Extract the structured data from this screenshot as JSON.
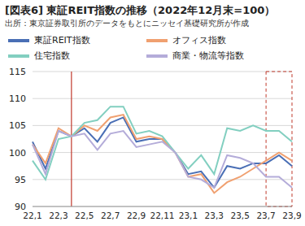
{
  "chart_data": {
    "type": "line",
    "title": "[図表6] 東証REIT指数の推移（2022年12月末=100）",
    "subtitle": "出所：東京証券取引所のデータをもとにニッセイ基礎研究所が作成",
    "categories": [
      "22,1",
      null,
      "22,3",
      null,
      "22,5",
      null,
      "22,7",
      null,
      "22,9",
      null,
      "22,11",
      null,
      "23,1",
      null,
      "23,3",
      null,
      "23,5",
      null,
      "23,7",
      null,
      "23,9"
    ],
    "series": [
      {
        "name": "東証REIT指数",
        "color": "#4a6fb5",
        "values": [
          102,
          97,
          104,
          103,
          104.5,
          102,
          105.5,
          106.5,
          102,
          102.5,
          102.5,
          100,
          96,
          96.5,
          93.5,
          97.5,
          97,
          98,
          98,
          99.5,
          97.5
        ]
      },
      {
        "name": "オフィス指数",
        "color": "#f0a070",
        "values": [
          101.5,
          98,
          104.5,
          103,
          105,
          104,
          106.5,
          107,
          102.5,
          103,
          102.5,
          100,
          95.5,
          96,
          92.5,
          94.5,
          95.5,
          97,
          98.5,
          100,
          98.5
        ]
      },
      {
        "name": "住宅指数",
        "color": "#82cfc0",
        "values": [
          98.5,
          95,
          102.5,
          103,
          105.5,
          106,
          108.5,
          108.5,
          103.5,
          104,
          103,
          100,
          97,
          99.5,
          96,
          104.5,
          104,
          105,
          104,
          104,
          102
        ]
      },
      {
        "name": "商業・物流等指数",
        "color": "#b4acd9",
        "values": [
          101.5,
          96,
          104,
          103,
          103.5,
          100.5,
          103.5,
          104,
          101,
          101.5,
          102,
          100,
          95.5,
          95,
          93.5,
          99.5,
          99,
          98,
          95.5,
          95.5,
          93.5
        ]
      }
    ],
    "ylim": [
      90,
      115
    ],
    "yticks": [
      90,
      95,
      100,
      105,
      110,
      115
    ],
    "grid": true
  }
}
